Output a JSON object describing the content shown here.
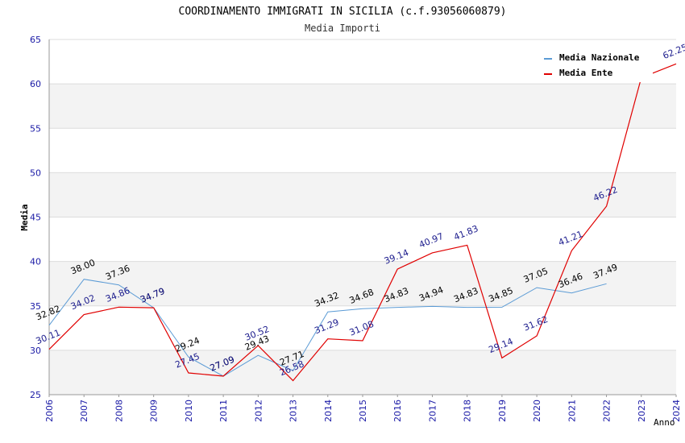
{
  "chart_data": {
    "type": "line",
    "title": "COORDINAMENTO IMMIGRATI IN SICILIA (c.f.93056060879)",
    "subtitle": "Media Importi",
    "xlabel": "Anno",
    "ylabel": "Media",
    "ylim": [
      25,
      65
    ],
    "yticks": [
      "25",
      "30",
      "35",
      "40",
      "45",
      "50",
      "55",
      "60",
      "65"
    ],
    "x": [
      "2006",
      "2007",
      "2008",
      "2009",
      "2010",
      "2011",
      "2012",
      "2013",
      "2014",
      "2015",
      "2016",
      "2017",
      "2018",
      "2019",
      "2020",
      "2021",
      "2022",
      "2023",
      "2024"
    ],
    "grid": true,
    "legend_position": "top-right",
    "series": [
      {
        "name": "Media Nazionale",
        "color": "#5b9bd5",
        "values": [
          32.82,
          38.0,
          37.36,
          34.79,
          29.24,
          27.09,
          29.43,
          27.71,
          34.32,
          34.68,
          34.83,
          34.94,
          34.83,
          34.85,
          37.05,
          36.46,
          37.49,
          null,
          null
        ],
        "labels": [
          "32.82",
          "38.00",
          "37.36",
          "34.79",
          "29.24",
          "27.09",
          "29.43",
          "27.71",
          "34.32",
          "34.68",
          "34.83",
          "34.94",
          "34.83",
          "34.85",
          "37.05",
          "36.46",
          "37.49",
          "",
          ""
        ]
      },
      {
        "name": "Media Ente",
        "color": "#e00000",
        "values": [
          30.11,
          34.02,
          34.86,
          34.79,
          27.45,
          27.09,
          30.52,
          26.58,
          31.29,
          31.08,
          39.14,
          40.97,
          41.83,
          29.14,
          31.62,
          41.21,
          46.22,
          60.7,
          62.25
        ],
        "labels": [
          "30.11",
          "34.02",
          "34.86",
          "34.79",
          "27.45",
          "27.09",
          "30.52",
          "26.58",
          "31.29",
          "31.08",
          "39.14",
          "40.97",
          "41.83",
          "29.14",
          "31.62",
          "41.21",
          "46.22",
          "",
          "62.25"
        ]
      }
    ]
  }
}
